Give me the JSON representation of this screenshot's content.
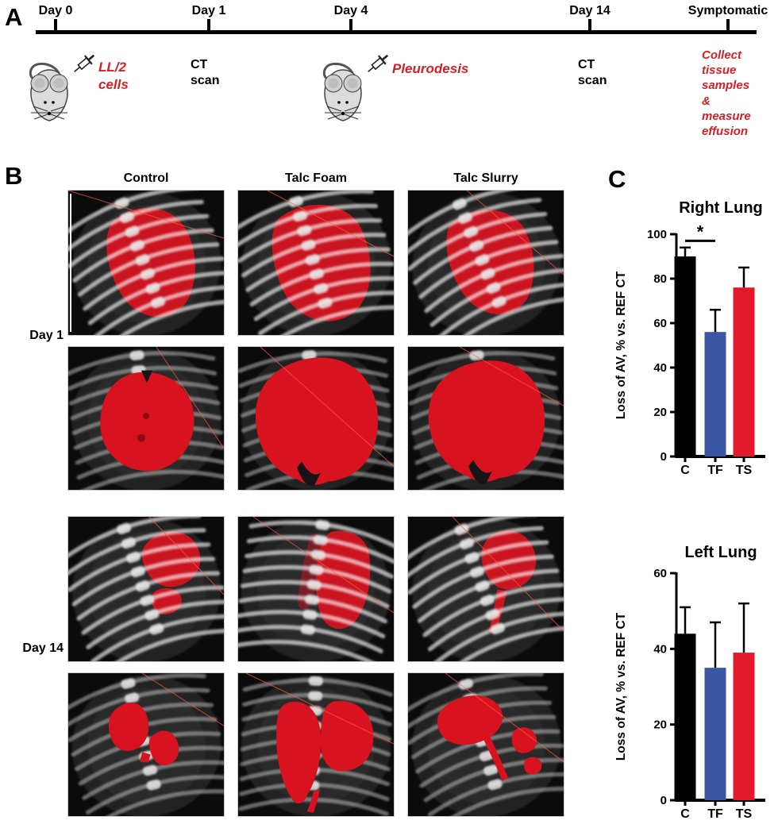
{
  "colors": {
    "text_red": "#D22027",
    "bar_black": "#000000",
    "bar_blue": "#3B55A5",
    "bar_red": "#E4192C",
    "lung_overlay_red": "#D8121F"
  },
  "panel_a": {
    "label": "A",
    "timeline_points": [
      {
        "label": "Day 0"
      },
      {
        "label": "Day 1"
      },
      {
        "label": "Day 4"
      },
      {
        "label": "Day 14"
      },
      {
        "label": "Symptomatic"
      }
    ],
    "events": [
      {
        "icon": "mouse-syringe",
        "lines": [
          "LL/2 cells"
        ],
        "emphasis": true
      },
      {
        "icon": null,
        "lines": [
          "CT",
          "scan"
        ],
        "emphasis": false
      },
      {
        "icon": "mouse-syringe",
        "lines": [
          "Pleurodesis"
        ],
        "emphasis": true
      },
      {
        "icon": null,
        "lines": [
          "CT",
          "scan"
        ],
        "emphasis": false
      },
      {
        "icon": null,
        "lines": [
          "Collect",
          "tissue",
          "samples",
          "& measure",
          "effusion"
        ],
        "emphasis": true
      }
    ]
  },
  "panel_b": {
    "label": "B",
    "columns": [
      "Control",
      "Talc Foam",
      "Talc Slurry"
    ],
    "row_groups": [
      "Day 1",
      "Day 14"
    ],
    "cells": [
      {
        "id": "d1-control-proj",
        "day": "Day 1",
        "treatment": "Control",
        "kind": "ct-projection-overlay",
        "red_extent": "full"
      },
      {
        "id": "d1-foam-proj",
        "day": "Day 1",
        "treatment": "Talc Foam",
        "kind": "ct-projection-overlay",
        "red_extent": "full"
      },
      {
        "id": "d1-slurry-proj",
        "day": "Day 1",
        "treatment": "Talc Slurry",
        "kind": "ct-projection-overlay",
        "red_extent": "full"
      },
      {
        "id": "d1-control-3d",
        "day": "Day 1",
        "treatment": "Control",
        "kind": "lung-3d-segmentation",
        "red_extent": "full"
      },
      {
        "id": "d1-foam-3d",
        "day": "Day 1",
        "treatment": "Talc Foam",
        "kind": "lung-3d-segmentation",
        "red_extent": "full"
      },
      {
        "id": "d1-slurry-3d",
        "day": "Day 1",
        "treatment": "Talc Slurry",
        "kind": "lung-3d-segmentation",
        "red_extent": "full"
      },
      {
        "id": "d14-control-proj",
        "day": "Day 14",
        "treatment": "Control",
        "kind": "ct-projection-overlay",
        "red_extent": "small"
      },
      {
        "id": "d14-foam-proj",
        "day": "Day 14",
        "treatment": "Talc Foam",
        "kind": "ct-projection-overlay",
        "red_extent": "medium"
      },
      {
        "id": "d14-slurry-proj",
        "day": "Day 14",
        "treatment": "Talc Slurry",
        "kind": "ct-projection-overlay",
        "red_extent": "small"
      },
      {
        "id": "d14-control-3d",
        "day": "Day 14",
        "treatment": "Control",
        "kind": "lung-3d-segmentation",
        "red_extent": "fragmented-small"
      },
      {
        "id": "d14-foam-3d",
        "day": "Day 14",
        "treatment": "Talc Foam",
        "kind": "lung-3d-segmentation",
        "red_extent": "fragmented-large"
      },
      {
        "id": "d14-slurry-3d",
        "day": "Day 14",
        "treatment": "Talc Slurry",
        "kind": "lung-3d-segmentation",
        "red_extent": "fragmented-small"
      }
    ]
  },
  "panel_c": {
    "label": "C"
  },
  "chart_data": [
    {
      "type": "bar",
      "title": "Right Lung",
      "ylabel": "Loss of AV, % vs. REF CT",
      "categories": [
        "C",
        "TF",
        "TS"
      ],
      "values": [
        90,
        56,
        76
      ],
      "errors": [
        4,
        10,
        9
      ],
      "bar_colors": [
        "#000000",
        "#3B55A5",
        "#E4192C"
      ],
      "ylim": [
        0,
        100
      ],
      "yticks": [
        0,
        20,
        40,
        60,
        80,
        100
      ],
      "grid": false,
      "significance": [
        {
          "between": [
            "C",
            "TF"
          ],
          "label": "*",
          "y": 97
        }
      ]
    },
    {
      "type": "bar",
      "title": "Left Lung",
      "ylabel": "Loss of AV, % vs. REF CT",
      "categories": [
        "C",
        "TF",
        "TS"
      ],
      "values": [
        44,
        35,
        39
      ],
      "errors": [
        7,
        12,
        13
      ],
      "bar_colors": [
        "#000000",
        "#3B55A5",
        "#E4192C"
      ],
      "ylim": [
        0,
        60
      ],
      "yticks": [
        0,
        20,
        40,
        60
      ],
      "grid": false,
      "significance": []
    }
  ]
}
